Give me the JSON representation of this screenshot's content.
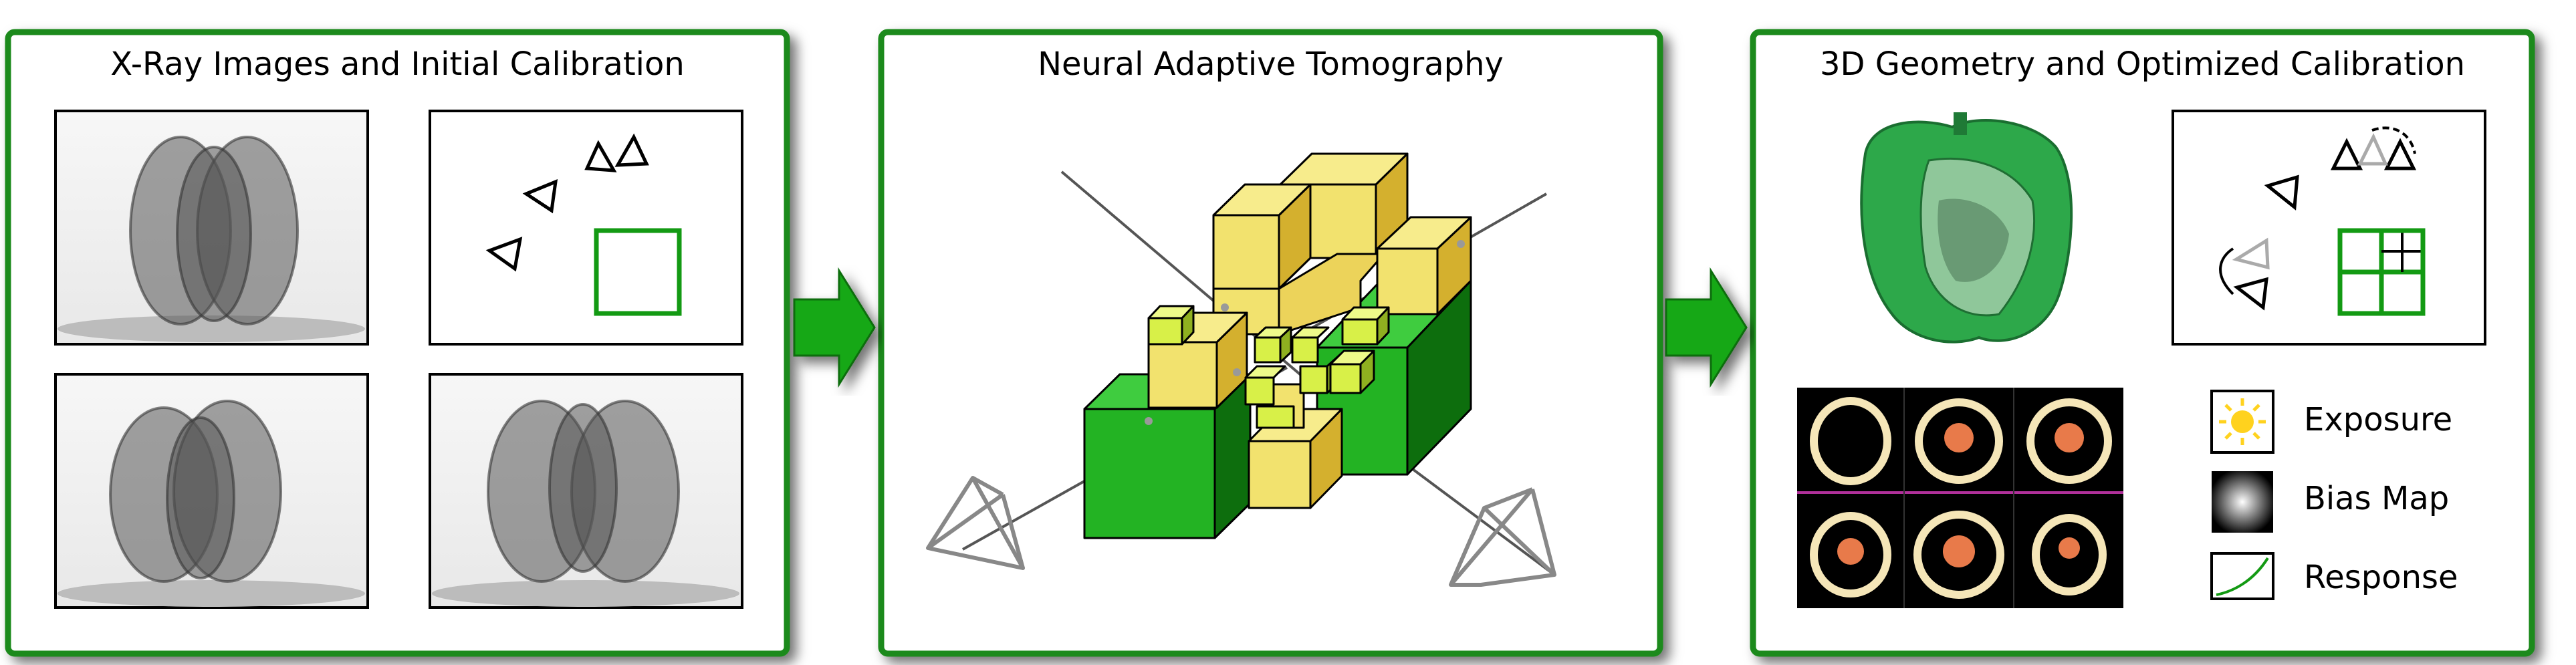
{
  "panels": {
    "left": {
      "title": "X-Ray Images and Initial Calibration"
    },
    "middle": {
      "title": "Neural Adaptive Tomography"
    },
    "right": {
      "title": "3D Geometry and Optimized Calibration"
    }
  },
  "legend": {
    "exposure": "Exposure",
    "bias_map": "Bias Map",
    "response": "Response"
  },
  "colors": {
    "frame_green": "#1e8a1e",
    "arrow_green": "#14a814",
    "calib_green": "#139a13",
    "voxel_yellow": "#f0e06a",
    "voxel_green": "#23b323",
    "lime": "#d8f048"
  }
}
